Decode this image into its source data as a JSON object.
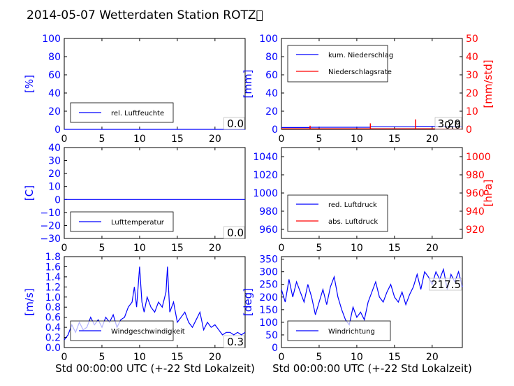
{
  "title": "2014-05-07 Wetterdaten Station ROTZ\u0000",
  "xlabel": "Std 00:00:00 UTC (+-22 Std Lokalzeit)",
  "colors": {
    "primary": "#0000ff",
    "secondary": "#ff0000",
    "axis": "#000000"
  },
  "chart_data": [
    {
      "id": "humidity",
      "type": "line",
      "ylabel": "[%]",
      "xlim": [
        0,
        24
      ],
      "ylim": [
        0,
        100
      ],
      "xticks": [
        "0",
        "5",
        "10",
        "15",
        "20"
      ],
      "yticks": [
        "0",
        "20",
        "40",
        "60",
        "80",
        "100"
      ],
      "legend": [
        {
          "label": "rel. Luftfeuchte",
          "color": "#0000ff"
        }
      ],
      "legend_position": "lower-left",
      "value_box": "0.0",
      "series": [
        {
          "name": "rel. Luftfeuchte",
          "x": [
            0,
            24
          ],
          "y": [
            0,
            0
          ]
        }
      ]
    },
    {
      "id": "precip",
      "type": "line",
      "ylabel": "[mm]",
      "ylabel_right": "[mm/std]",
      "xlim": [
        0,
        24
      ],
      "ylim": [
        0,
        100
      ],
      "ylim_right": [
        0,
        50
      ],
      "xticks": [
        "0",
        "5",
        "10",
        "15",
        "20"
      ],
      "yticks": [
        "0",
        "20",
        "40",
        "60",
        "80",
        "100"
      ],
      "yticks_right": [
        "0",
        "10",
        "20",
        "30",
        "40",
        "50"
      ],
      "legend": [
        {
          "label": "kum. Niederschlag",
          "color": "#0000ff"
        },
        {
          "label": "Niederschlagsrate",
          "color": "#ff0000"
        }
      ],
      "legend_position": "upper-left",
      "value_box": "3.29",
      "value_box_2": "0.0",
      "series": [
        {
          "name": "kum. Niederschlag",
          "x": [
            0,
            3.8,
            3.9,
            11.7,
            11.8,
            17.8,
            17.9,
            24
          ],
          "y": [
            2.0,
            2.0,
            2.3,
            2.3,
            2.9,
            2.9,
            3.29,
            3.29
          ]
        },
        {
          "name": "Niederschlagsrate",
          "spikes": [
            [
              3.8,
              2.0
            ],
            [
              11.8,
              3.3
            ],
            [
              17.8,
              5.5
            ]
          ]
        }
      ]
    },
    {
      "id": "temperature",
      "type": "line",
      "ylabel": "[C]",
      "xlim": [
        0,
        24
      ],
      "ylim": [
        -30,
        40
      ],
      "xticks": [
        "0",
        "5",
        "10",
        "15",
        "20"
      ],
      "yticks": [
        "−30",
        "−20",
        "−10",
        "0",
        "10",
        "20",
        "30",
        "40"
      ],
      "legend": [
        {
          "label": "Lufttemperatur",
          "color": "#0000ff"
        }
      ],
      "legend_position": "lower-left",
      "value_box": "0.0",
      "series": [
        {
          "name": "Lufttemperatur",
          "x": [
            0,
            24
          ],
          "y": [
            0,
            0
          ]
        }
      ]
    },
    {
      "id": "pressure",
      "type": "line",
      "ylabel_right": "[hPa]",
      "xlim": [
        0,
        24
      ],
      "ylim": [
        950,
        1050
      ],
      "ylim_right": [
        910,
        1010
      ],
      "xticks": [
        "0",
        "5",
        "10",
        "15",
        "20"
      ],
      "yticks": [
        "960",
        "980",
        "1000",
        "1020",
        "1040"
      ],
      "yticks_right": [
        "920",
        "940",
        "960",
        "980",
        "1000"
      ],
      "legend": [
        {
          "label": "red. Luftdruck",
          "color": "#0000ff"
        },
        {
          "label": "abs. Luftdruck",
          "color": "#ff0000"
        }
      ],
      "legend_position": "lower-left",
      "series": []
    },
    {
      "id": "wind",
      "type": "line",
      "ylabel": "[m/s]",
      "xlim": [
        0,
        24
      ],
      "ylim": [
        0,
        1.8
      ],
      "xticks": [
        "0",
        "5",
        "10",
        "15",
        "20"
      ],
      "yticks": [
        "0.0",
        "0.2",
        "0.4",
        "0.6",
        "0.8",
        "1.0",
        "1.2",
        "1.4",
        "1.6",
        "1.8"
      ],
      "legend": [
        {
          "label": "Windgeschwindigkeit",
          "color": "#0000ff"
        }
      ],
      "legend_position": "lower-left",
      "value_box": "0.3",
      "series": [
        {
          "name": "Windgeschwindigkeit",
          "x": [
            0,
            0.5,
            1,
            1.5,
            2,
            2.5,
            3,
            3.5,
            4,
            4.5,
            5,
            5.5,
            6,
            6.5,
            7,
            7.5,
            8,
            8.5,
            9,
            9.3,
            9.6,
            10,
            10.3,
            10.6,
            11,
            11.5,
            12,
            12.5,
            13,
            13.5,
            13.7,
            14,
            14.5,
            15,
            15.5,
            16,
            16.5,
            17,
            17.5,
            18,
            18.5,
            19,
            19.5,
            20,
            20.5,
            21,
            21.5,
            22,
            22.5,
            23,
            23.5,
            24
          ],
          "y": [
            0.15,
            0.25,
            0.45,
            0.3,
            0.5,
            0.35,
            0.4,
            0.6,
            0.45,
            0.55,
            0.4,
            0.6,
            0.5,
            0.65,
            0.4,
            0.55,
            0.6,
            0.8,
            0.9,
            1.2,
            0.8,
            1.6,
            0.9,
            0.7,
            1.0,
            0.8,
            0.7,
            0.9,
            0.8,
            1.1,
            1.6,
            0.7,
            0.9,
            0.5,
            0.6,
            0.7,
            0.5,
            0.4,
            0.55,
            0.7,
            0.35,
            0.5,
            0.4,
            0.45,
            0.35,
            0.25,
            0.3,
            0.3,
            0.25,
            0.3,
            0.25,
            0.3
          ]
        }
      ]
    },
    {
      "id": "winddir",
      "type": "line",
      "ylabel": "[deg]",
      "xlim": [
        0,
        24
      ],
      "ylim": [
        0,
        360
      ],
      "xticks": [
        "0",
        "5",
        "10",
        "15",
        "20"
      ],
      "yticks": [
        "0",
        "50",
        "100",
        "150",
        "200",
        "250",
        "300",
        "350"
      ],
      "legend": [
        {
          "label": "Windrichtung",
          "color": "#0000ff"
        }
      ],
      "legend_position": "lower-left",
      "value_box": "217.5",
      "series": [
        {
          "name": "Windrichtung",
          "x": [
            0,
            0.5,
            1,
            1.5,
            2,
            2.5,
            3,
            3.5,
            4,
            4.5,
            5,
            5.5,
            6,
            6.5,
            7,
            7.5,
            8,
            8.5,
            9,
            9.5,
            10,
            10.5,
            11,
            11.5,
            12,
            12.5,
            13,
            13.5,
            14,
            14.5,
            15,
            15.5,
            16,
            16.5,
            17,
            17.5,
            18,
            18.5,
            19,
            19.5,
            20,
            20.5,
            21,
            21.5,
            22,
            22.5,
            23,
            23.5,
            24
          ],
          "y": [
            230,
            180,
            270,
            200,
            260,
            220,
            180,
            250,
            200,
            130,
            180,
            230,
            170,
            240,
            280,
            200,
            150,
            110,
            90,
            160,
            120,
            140,
            110,
            180,
            220,
            260,
            200,
            180,
            220,
            250,
            200,
            180,
            220,
            170,
            210,
            240,
            290,
            230,
            300,
            280,
            250,
            300,
            270,
            310,
            230,
            290,
            260,
            300,
            240
          ]
        }
      ]
    }
  ]
}
